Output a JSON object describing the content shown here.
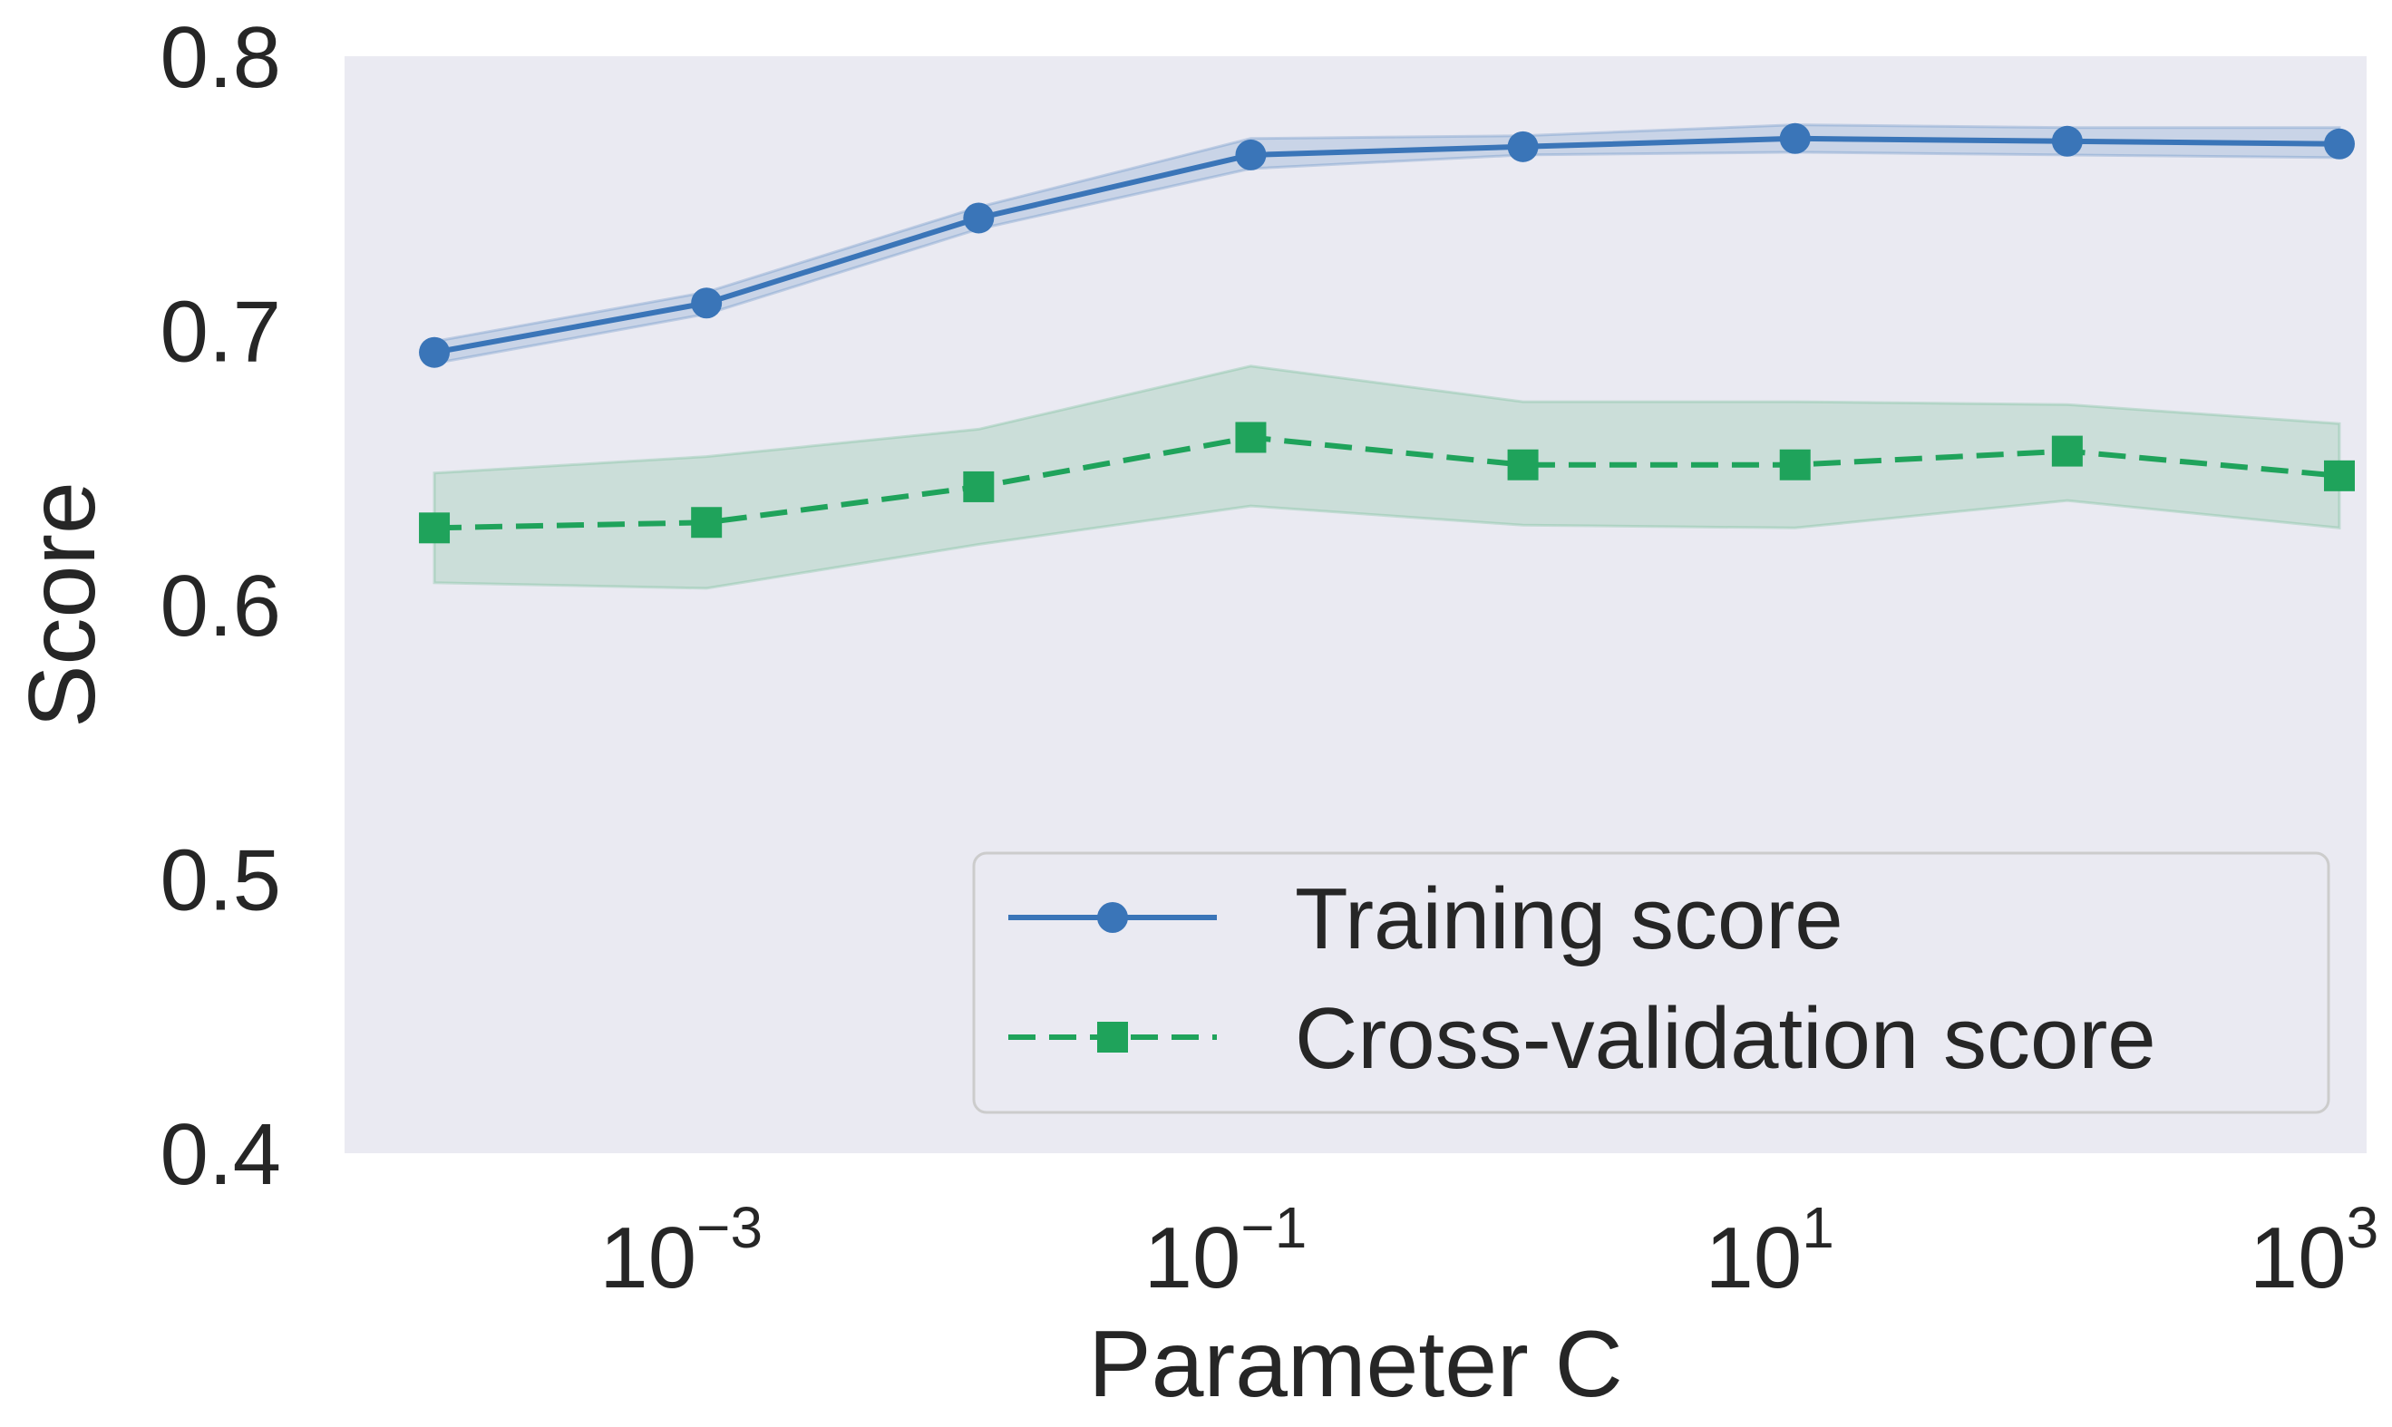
{
  "chart_data": {
    "type": "line",
    "title": "",
    "xlabel": "Parameter C",
    "ylabel": "Score",
    "xscale": "log",
    "x": [
      0.0001,
      0.001,
      0.01,
      0.1,
      1,
      10,
      100,
      1000
    ],
    "xlim_log10": [
      -4.33,
      3.1
    ],
    "ylim": [
      0.4,
      0.8
    ],
    "grid": false,
    "background": "#eaeaf2",
    "yticks": [
      {
        "value": 0.4,
        "label": "0.4"
      },
      {
        "value": 0.5,
        "label": "0.5"
      },
      {
        "value": 0.6,
        "label": "0.6"
      },
      {
        "value": 0.7,
        "label": "0.7"
      },
      {
        "value": 0.8,
        "label": "0.8"
      }
    ],
    "xticks": [
      {
        "exp": -3,
        "base": "10",
        "sup": "−3"
      },
      {
        "exp": -1,
        "base": "10",
        "sup": "−1"
      },
      {
        "exp": 1,
        "base": "10",
        "sup": "1"
      },
      {
        "exp": 3,
        "base": "10",
        "sup": "3"
      }
    ],
    "series": [
      {
        "name": "Training score",
        "color": "#3a75b8",
        "band_color": "#3a75b8",
        "style": "solid",
        "marker": "circle",
        "values": [
          0.692,
          0.71,
          0.741,
          0.764,
          0.767,
          0.77,
          0.769,
          0.768
        ],
        "lower": [
          0.688,
          0.706,
          0.737,
          0.759,
          0.764,
          0.765,
          0.764,
          0.763
        ],
        "upper": [
          0.696,
          0.714,
          0.745,
          0.77,
          0.771,
          0.775,
          0.774,
          0.774
        ]
      },
      {
        "name": "Cross-validation score",
        "color": "#1fa35b",
        "band_color": "#4fb07a",
        "style": "dashed",
        "marker": "square",
        "values": [
          0.628,
          0.63,
          0.643,
          0.661,
          0.651,
          0.651,
          0.656,
          0.647
        ],
        "lower": [
          0.608,
          0.606,
          0.622,
          0.636,
          0.629,
          0.628,
          0.638,
          0.628
        ],
        "upper": [
          0.648,
          0.654,
          0.664,
          0.687,
          0.674,
          0.674,
          0.673,
          0.666
        ]
      }
    ],
    "legend": {
      "placement": "lower-right"
    }
  }
}
